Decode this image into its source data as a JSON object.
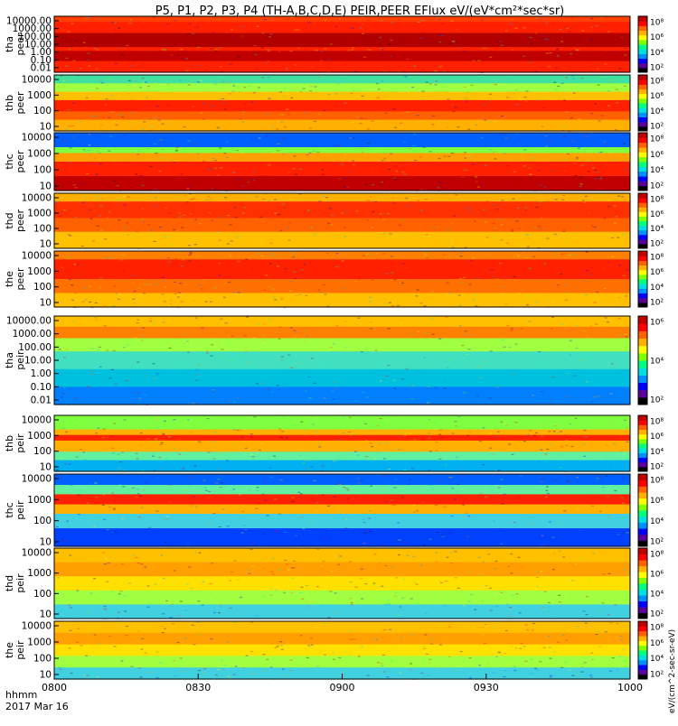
{
  "title": "P5, P1, P2, P3, P4 (TH-A,B,C,D,E) PEIR,PEER EFlux eV/(eV*cm²*sec*sr)",
  "colorbar_label": "[eV/(cm2-s",
  "colorbar_label_text": "eV/(cm^2-sec-sr-eV)",
  "x_axis": {
    "ticks": [
      "0800",
      "0830",
      "0900",
      "0930",
      "1000"
    ],
    "range_minutes": [
      0,
      120
    ],
    "label_top": "hhmm",
    "label_bottom": "2017 Mar 16"
  },
  "colors": {
    "colormap": [
      "#000000",
      "#5a009a",
      "#0000ff",
      "#0090ff",
      "#00e0e0",
      "#00ff80",
      "#80ff00",
      "#ffff00",
      "#ffb000",
      "#ff6000",
      "#ff0000",
      "#c00000"
    ]
  },
  "chart_data": [
    {
      "type": "heatmap",
      "probe": "tha",
      "species": "peer",
      "ylabel": "tha\npeer",
      "yscale": "log",
      "yticks": [
        "10000.00",
        "1000.00",
        "100.00",
        "10.00",
        "1.00",
        "0.10",
        "0.01"
      ],
      "colorbar_ticks": [
        "10⁸",
        "10⁶",
        "10⁴",
        "10²"
      ],
      "bands": [
        {
          "from": 0.0,
          "to": 0.1,
          "color": "#ff4000"
        },
        {
          "from": 0.1,
          "to": 0.3,
          "color": "#ff2000"
        },
        {
          "from": 0.3,
          "to": 0.55,
          "color": "#b00000"
        },
        {
          "from": 0.55,
          "to": 0.62,
          "color": "#ff2000"
        },
        {
          "from": 0.62,
          "to": 0.8,
          "color": "#c00000"
        },
        {
          "from": 0.8,
          "to": 1.0,
          "color": "#ff2000"
        }
      ]
    },
    {
      "type": "heatmap",
      "probe": "thb",
      "species": "peer",
      "ylabel": "thb\npeer",
      "yscale": "log",
      "yticks": [
        "10000",
        "1000",
        "100",
        "10"
      ],
      "colorbar_ticks": [
        "10⁸",
        "10⁶",
        "10⁴",
        "10²"
      ],
      "bands": [
        {
          "from": 0.0,
          "to": 0.15,
          "color": "#40e0a0"
        },
        {
          "from": 0.15,
          "to": 0.3,
          "color": "#a0ff40"
        },
        {
          "from": 0.3,
          "to": 0.45,
          "color": "#ffc000"
        },
        {
          "from": 0.45,
          "to": 0.65,
          "color": "#ff2000"
        },
        {
          "from": 0.65,
          "to": 0.8,
          "color": "#ff6000"
        },
        {
          "from": 0.8,
          "to": 1.0,
          "color": "#ffb000"
        }
      ]
    },
    {
      "type": "heatmap",
      "probe": "thc",
      "species": "peer",
      "ylabel": "thc\npeer",
      "yscale": "log",
      "yticks": [
        "10000",
        "1000",
        "100",
        "10"
      ],
      "colorbar_ticks": [
        "10⁸",
        "10⁶",
        "10⁴",
        "10²"
      ],
      "bands": [
        {
          "from": 0.0,
          "to": 0.25,
          "color": "#0060ff"
        },
        {
          "from": 0.25,
          "to": 0.35,
          "color": "#80ff40"
        },
        {
          "from": 0.35,
          "to": 0.5,
          "color": "#ffa000"
        },
        {
          "from": 0.5,
          "to": 0.75,
          "color": "#ff2000"
        },
        {
          "from": 0.75,
          "to": 1.0,
          "color": "#c00000"
        }
      ]
    },
    {
      "type": "heatmap",
      "probe": "thd",
      "species": "peer",
      "ylabel": "thd\npeer",
      "yscale": "log",
      "yticks": [
        "10000",
        "1000",
        "100",
        "10"
      ],
      "colorbar_ticks": [
        "10⁸",
        "10⁶",
        "10⁴",
        "10²"
      ],
      "bands": [
        {
          "from": 0.0,
          "to": 0.15,
          "color": "#ffb000"
        },
        {
          "from": 0.15,
          "to": 0.45,
          "color": "#ff3000"
        },
        {
          "from": 0.45,
          "to": 0.7,
          "color": "#ff6000"
        },
        {
          "from": 0.7,
          "to": 1.0,
          "color": "#ffc000"
        }
      ]
    },
    {
      "type": "heatmap",
      "probe": "the",
      "species": "peer",
      "ylabel": "the\npeer",
      "yscale": "log",
      "yticks": [
        "10000",
        "1000",
        "100",
        "10"
      ],
      "colorbar_ticks": [
        "10⁸",
        "10⁶",
        "10⁴",
        "10²"
      ],
      "bands": [
        {
          "from": 0.0,
          "to": 0.15,
          "color": "#ff8000"
        },
        {
          "from": 0.15,
          "to": 0.5,
          "color": "#ff2000"
        },
        {
          "from": 0.5,
          "to": 0.75,
          "color": "#ff7000"
        },
        {
          "from": 0.75,
          "to": 1.0,
          "color": "#ffc000"
        }
      ]
    },
    {
      "type": "heatmap",
      "probe": "tha",
      "species": "peir",
      "ylabel": "tha\npeir",
      "yscale": "log",
      "yticks": [
        "10000.00",
        "1000.00",
        "100.00",
        "10.00",
        "1.00",
        "0.10",
        "0.01"
      ],
      "colorbar_ticks": [
        "10⁶",
        "10⁴",
        "10²"
      ],
      "bands": [
        {
          "from": 0.0,
          "to": 0.12,
          "color": "#ffc000"
        },
        {
          "from": 0.12,
          "to": 0.25,
          "color": "#ff8000"
        },
        {
          "from": 0.25,
          "to": 0.4,
          "color": "#a0ff40"
        },
        {
          "from": 0.4,
          "to": 0.6,
          "color": "#40e0c0"
        },
        {
          "from": 0.6,
          "to": 0.8,
          "color": "#00c0e0"
        },
        {
          "from": 0.8,
          "to": 1.0,
          "color": "#0080ff"
        }
      ]
    },
    {
      "type": "heatmap",
      "probe": "thb",
      "species": "peir",
      "ylabel": "thb\npeir",
      "yscale": "log",
      "yticks": [
        "10000",
        "1000",
        "100",
        "10"
      ],
      "colorbar_ticks": [
        "10⁸",
        "10⁶",
        "10⁴",
        "10²"
      ],
      "bands": [
        {
          "from": 0.0,
          "to": 0.25,
          "color": "#80ff40"
        },
        {
          "from": 0.25,
          "to": 0.35,
          "color": "#ffb000"
        },
        {
          "from": 0.35,
          "to": 0.45,
          "color": "#ff2000"
        },
        {
          "from": 0.45,
          "to": 0.65,
          "color": "#ffb000"
        },
        {
          "from": 0.65,
          "to": 0.8,
          "color": "#60f0a0"
        },
        {
          "from": 0.8,
          "to": 1.0,
          "color": "#00b0f0"
        }
      ]
    },
    {
      "type": "heatmap",
      "probe": "thc",
      "species": "peir",
      "ylabel": "thc\npeir",
      "yscale": "log",
      "yticks": [
        "10000",
        "1000",
        "100",
        "10"
      ],
      "colorbar_ticks": [
        "10⁸",
        "10⁶",
        "10⁴",
        "10²"
      ],
      "bands": [
        {
          "from": 0.0,
          "to": 0.15,
          "color": "#0060ff"
        },
        {
          "from": 0.15,
          "to": 0.28,
          "color": "#60f0a0"
        },
        {
          "from": 0.28,
          "to": 0.42,
          "color": "#ff2000"
        },
        {
          "from": 0.42,
          "to": 0.55,
          "color": "#ffb000"
        },
        {
          "from": 0.55,
          "to": 0.75,
          "color": "#40d0e0"
        },
        {
          "from": 0.75,
          "to": 1.0,
          "color": "#0040ff"
        }
      ]
    },
    {
      "type": "heatmap",
      "probe": "thd",
      "species": "peir",
      "ylabel": "thd\npeir",
      "yscale": "log",
      "yticks": [
        "10000",
        "1000",
        "100",
        "10"
      ],
      "colorbar_ticks": [
        "10⁸",
        "10⁶",
        "10⁴",
        "10²"
      ],
      "bands": [
        {
          "from": 0.0,
          "to": 0.2,
          "color": "#ffc000"
        },
        {
          "from": 0.2,
          "to": 0.4,
          "color": "#ffa000"
        },
        {
          "from": 0.4,
          "to": 0.6,
          "color": "#ffe000"
        },
        {
          "from": 0.6,
          "to": 0.8,
          "color": "#a0ff40"
        },
        {
          "from": 0.8,
          "to": 1.0,
          "color": "#40d0e0"
        }
      ]
    },
    {
      "type": "heatmap",
      "probe": "the",
      "species": "peir",
      "ylabel": "the\npeir",
      "yscale": "log",
      "yticks": [
        "10000",
        "1000",
        "100",
        "10"
      ],
      "colorbar_ticks": [
        "10⁸",
        "10⁶",
        "10⁴",
        "10²"
      ],
      "bands": [
        {
          "from": 0.0,
          "to": 0.2,
          "color": "#ffc000"
        },
        {
          "from": 0.2,
          "to": 0.4,
          "color": "#ffa000"
        },
        {
          "from": 0.4,
          "to": 0.6,
          "color": "#ffe000"
        },
        {
          "from": 0.6,
          "to": 0.8,
          "color": "#a0ff40"
        },
        {
          "from": 0.8,
          "to": 1.0,
          "color": "#40d0e0"
        }
      ]
    }
  ]
}
